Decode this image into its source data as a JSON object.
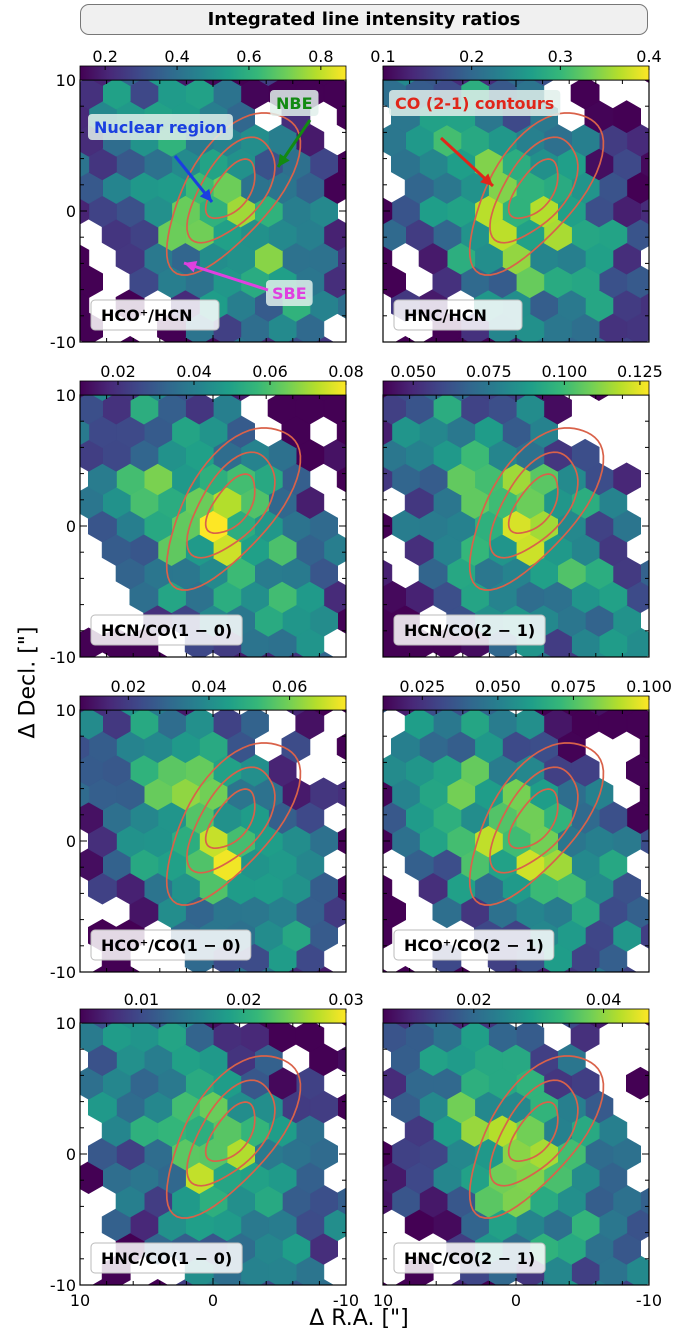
{
  "figure_title": "Integrated line intensity ratios",
  "ylabel": "Δ Decl. [\"]",
  "xlabel": "Δ R.A. [\"]",
  "chart_data": [
    {
      "type": "heatmap",
      "panel_label": "HCO⁺/HCN",
      "colorbar_ticks": [
        "0.2",
        "0.4",
        "0.6",
        "0.8"
      ],
      "colorbar_range": [
        0.13,
        0.87
      ],
      "xlim": [
        10,
        -10
      ],
      "ylim": [
        -10,
        10
      ],
      "seed": 11,
      "annotations": [
        {
          "text": "Nuclear region",
          "color": "#1a3fe0"
        },
        {
          "text": "NBE",
          "color": "#128a12"
        },
        {
          "text": "SBE",
          "color": "#e040e0"
        }
      ]
    },
    {
      "type": "heatmap",
      "panel_label": "HNC/HCN",
      "colorbar_ticks": [
        "0.1",
        "0.2",
        "0.3",
        "0.4"
      ],
      "colorbar_range": [
        0.1,
        0.4
      ],
      "xlim": [
        10,
        -10
      ],
      "ylim": [
        -10,
        10
      ],
      "seed": 23,
      "annotations": [
        {
          "text": "CO (2-1) contours",
          "color": "#e0261a"
        }
      ]
    },
    {
      "type": "heatmap",
      "panel_label": "HCN/CO(1 − 0)",
      "colorbar_ticks": [
        "0.02",
        "0.04",
        "0.06",
        "0.08"
      ],
      "colorbar_range": [
        0.01,
        0.08
      ],
      "xlim": [
        10,
        -10
      ],
      "ylim": [
        -10,
        10
      ],
      "seed": 37
    },
    {
      "type": "heatmap",
      "panel_label": "HCN/CO(2 − 1)",
      "colorbar_ticks": [
        "0.050",
        "0.075",
        "0.100",
        "0.125"
      ],
      "colorbar_range": [
        0.04,
        0.128
      ],
      "xlim": [
        10,
        -10
      ],
      "ylim": [
        -10,
        10
      ],
      "seed": 41
    },
    {
      "type": "heatmap",
      "panel_label": "HCO⁺/CO(1 − 0)",
      "colorbar_ticks": [
        "0.02",
        "0.04",
        "0.06"
      ],
      "colorbar_range": [
        0.008,
        0.074
      ],
      "xlim": [
        10,
        -10
      ],
      "ylim": [
        -10,
        10
      ],
      "seed": 53
    },
    {
      "type": "heatmap",
      "panel_label": "HCO⁺/CO(2 − 1)",
      "colorbar_ticks": [
        "0.025",
        "0.050",
        "0.075",
        "0.100"
      ],
      "colorbar_range": [
        0.012,
        0.1
      ],
      "xlim": [
        10,
        -10
      ],
      "ylim": [
        -10,
        10
      ],
      "seed": 67
    },
    {
      "type": "heatmap",
      "panel_label": "HNC/CO(1 − 0)",
      "colorbar_ticks": [
        "0.01",
        "0.02",
        "0.03"
      ],
      "colorbar_range": [
        0.004,
        0.03
      ],
      "xlim": [
        10,
        -10
      ],
      "ylim": [
        -10,
        10
      ],
      "seed": 71
    },
    {
      "type": "heatmap",
      "panel_label": "HNC/CO(2 − 1)",
      "colorbar_ticks": [
        "0.02",
        "0.04"
      ],
      "colorbar_range": [
        0.006,
        0.047
      ],
      "xlim": [
        10,
        -10
      ],
      "ylim": [
        -10,
        10
      ],
      "seed": 89
    }
  ],
  "y_tick_labels": [
    "10",
    "0",
    "-10"
  ],
  "x_tick_labels": [
    "10",
    "0",
    "-10"
  ]
}
